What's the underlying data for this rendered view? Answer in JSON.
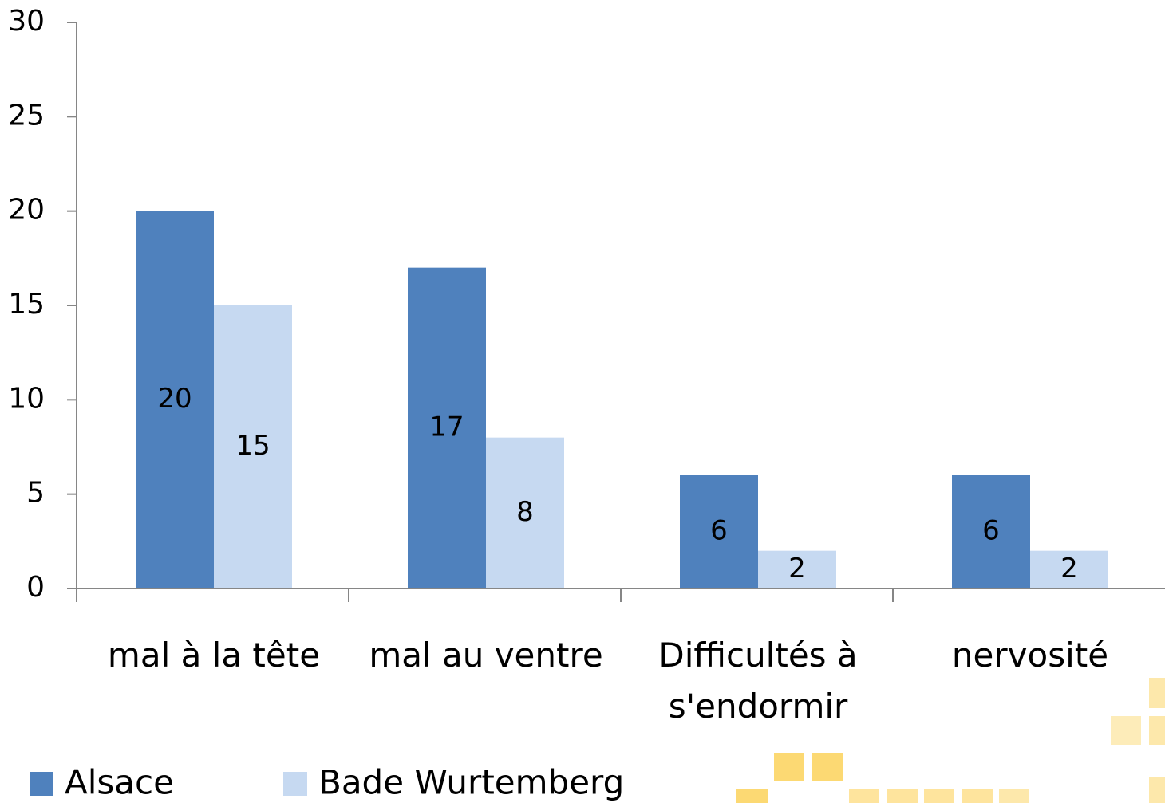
{
  "chart_data": {
    "type": "bar",
    "categories": [
      "mal à la tête",
      "mal au ventre",
      "Difficultés à s'endormir",
      "nervosité"
    ],
    "series": [
      {
        "name": "Alsace",
        "color": "#4f81bd",
        "values": [
          20,
          17,
          6,
          6
        ]
      },
      {
        "name": "Bade Wurtemberg",
        "color": "#c6d9f1",
        "values": [
          15,
          8,
          2,
          2
        ]
      }
    ],
    "ylim": [
      0,
      30
    ],
    "yticks": [
      0,
      5,
      10,
      15,
      20,
      25,
      30
    ],
    "grid": false,
    "legend": "bottom"
  }
}
